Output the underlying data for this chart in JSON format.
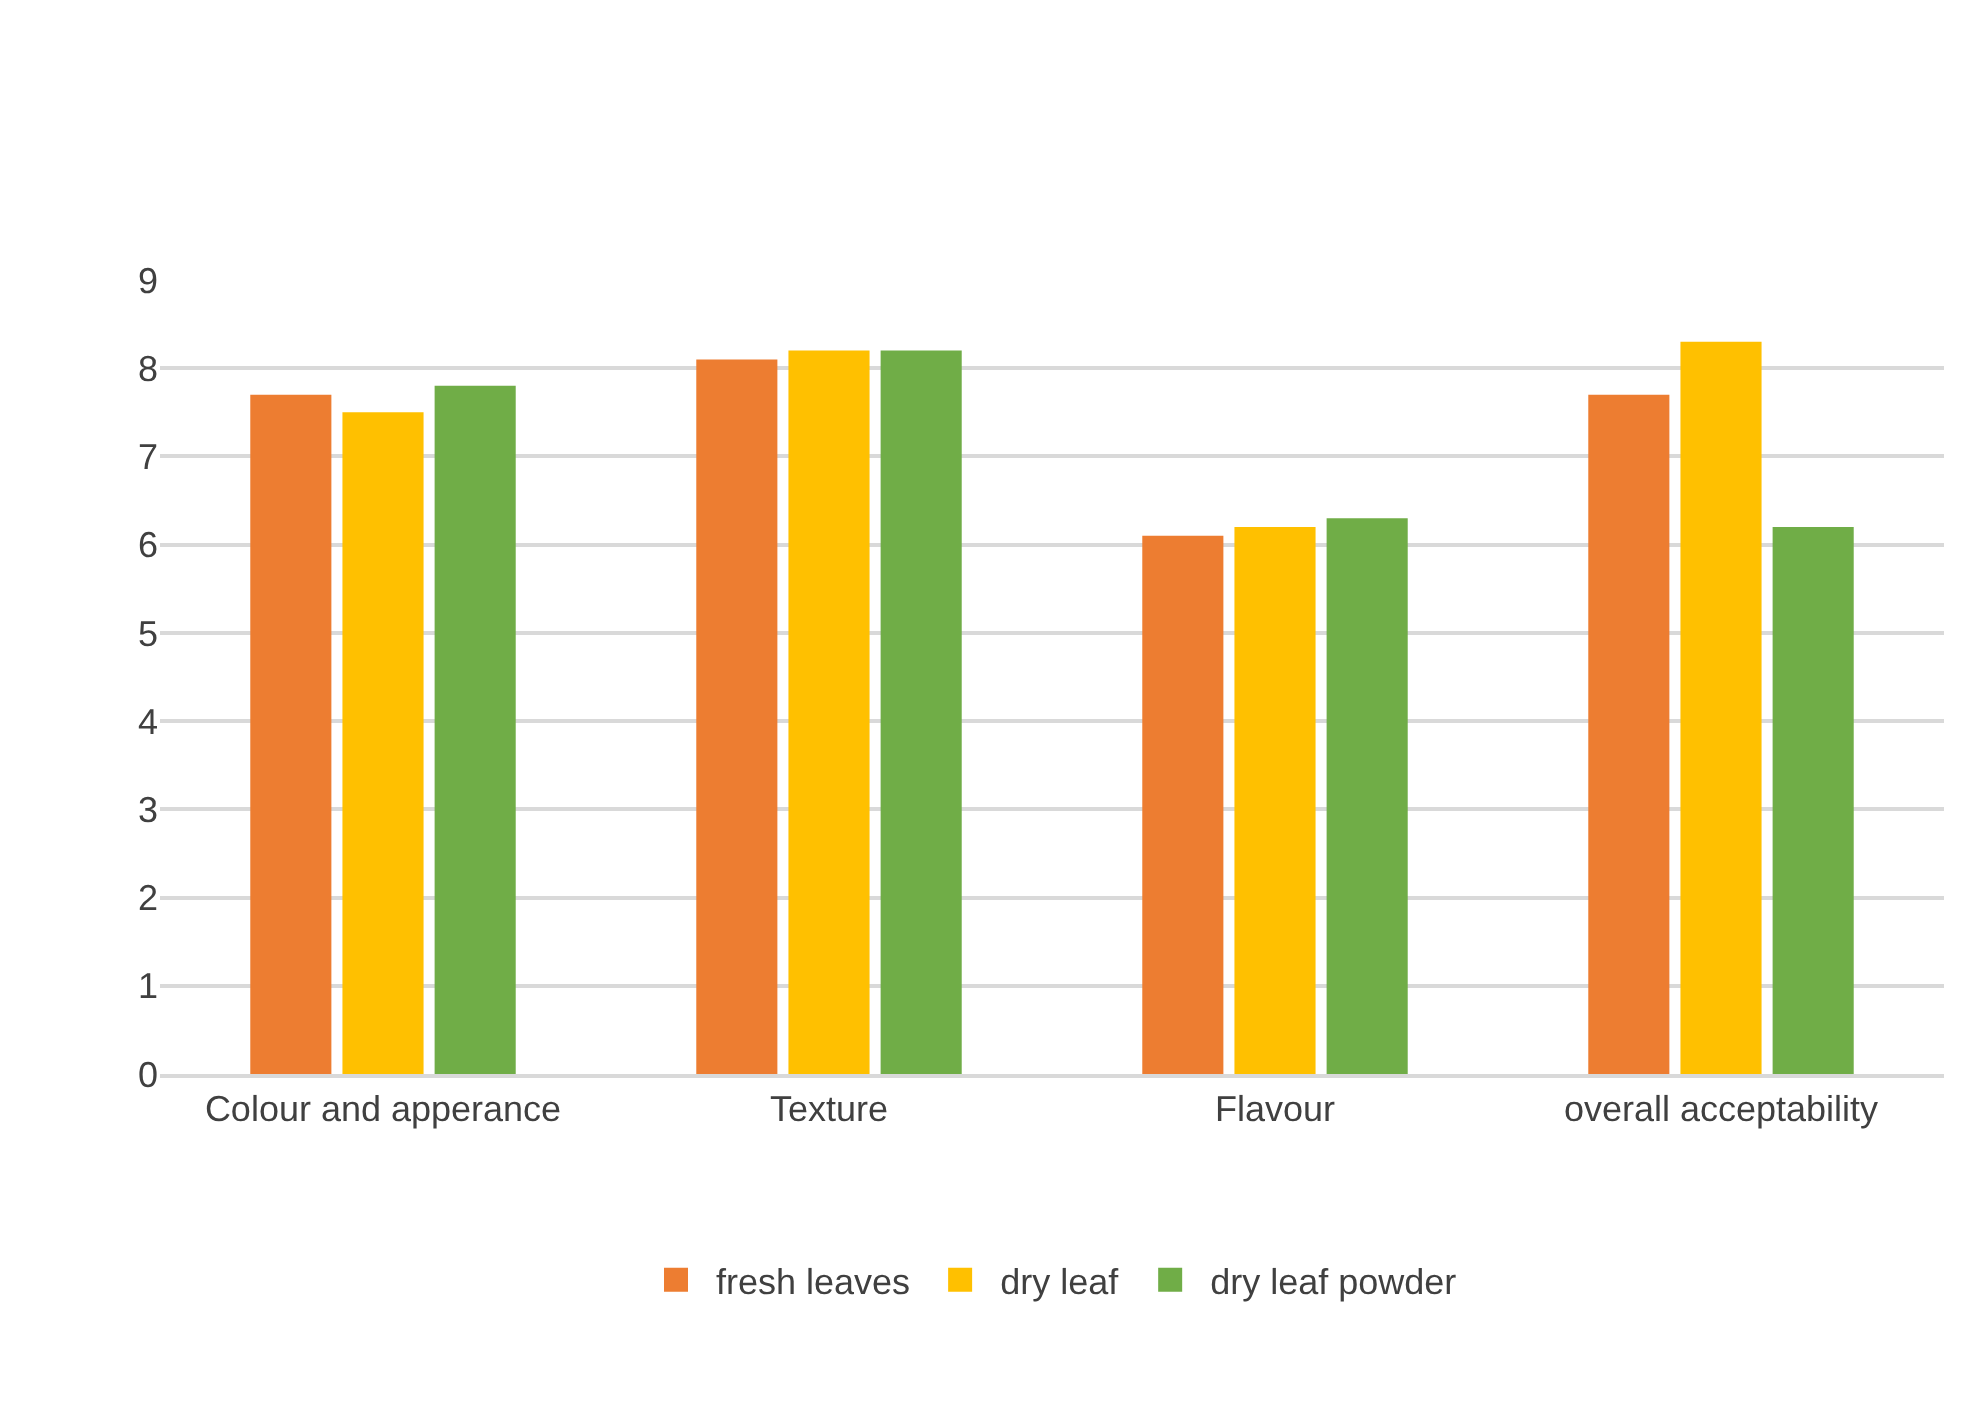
{
  "chart_data": {
    "type": "bar",
    "categories": [
      "Colour and apperance",
      "Texture",
      "Flavour",
      "overall acceptability"
    ],
    "series": [
      {
        "name": "fresh leaves",
        "color": "#ed7d31",
        "values": [
          7.7,
          8.1,
          6.1,
          7.7
        ]
      },
      {
        "name": "dry leaf",
        "color": "#ffc000",
        "values": [
          7.5,
          8.2,
          6.2,
          8.3
        ]
      },
      {
        "name": "dry leaf powder",
        "color": "#70ad47",
        "values": [
          7.8,
          8.2,
          6.3,
          6.2
        ]
      }
    ],
    "ylim": [
      0,
      9
    ],
    "yticks": [
      0,
      1,
      2,
      3,
      4,
      5,
      6,
      7,
      8,
      9
    ],
    "grid": "y",
    "legend": "bottom"
  }
}
